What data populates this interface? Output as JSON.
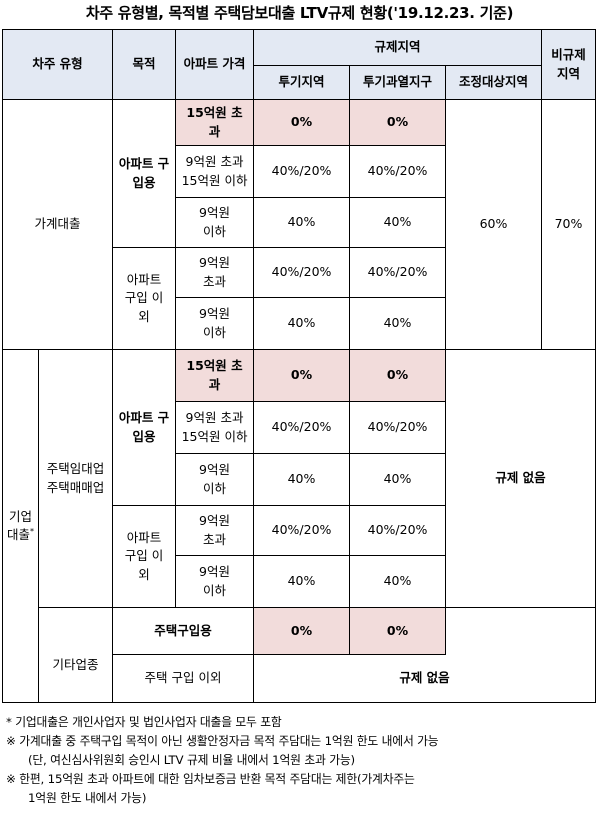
{
  "title": "차주 유형별, 목적별 주택담보대출 LTV규제 현황('19.12.23. 기준)",
  "header": {
    "borrower_type": "차주 유형",
    "purpose": "목적",
    "apt_price": "아파트 가격",
    "regulated": "규제지역",
    "speculative": "투기지역",
    "overheated": "투기과열지구",
    "adjustment": "조정대상지역",
    "non_regulated": "비규제 지역"
  },
  "household": {
    "label": "가계대출",
    "purchase_label": "아파트 구입용",
    "other_label": "아파트 구입 이외",
    "rows": [
      {
        "price": "15억원 초과",
        "spec": "0%",
        "over": "0%"
      },
      {
        "price": "9억원 초과 15억원 이하",
        "spec": "40%/20%",
        "over": "40%/20%"
      },
      {
        "price": "9억원 이하",
        "spec": "40%",
        "over": "40%"
      },
      {
        "price": "9억원 초과",
        "spec": "40%/20%",
        "over": "40%/20%"
      },
      {
        "price": "9억원 이하",
        "spec": "40%",
        "over": "40%"
      }
    ],
    "adjustment_value": "60%",
    "non_regulated_value": "70%"
  },
  "corporate": {
    "label": "기업 대출",
    "label_sup": "*",
    "rental_label": "주택임대업 주택매매업",
    "purchase_label": "아파트 구입용",
    "other_label": "아파트 구입 이외",
    "rows": [
      {
        "price": "15억원 초과",
        "spec": "0%",
        "over": "0%"
      },
      {
        "price": "9억원 초과 15억원 이하",
        "spec": "40%/20%",
        "over": "40%/20%"
      },
      {
        "price": "9억원 이하",
        "spec": "40%",
        "over": "40%"
      },
      {
        "price": "9억원 초과",
        "spec": "40%/20%",
        "over": "40%/20%"
      },
      {
        "price": "9억원 이하",
        "spec": "40%",
        "over": "40%"
      }
    ],
    "no_regulation": "규제 없음",
    "other_business": {
      "label": "기타업종",
      "purchase": "주택구입용",
      "spec": "0%",
      "over": "0%",
      "non_purchase": "주택 구입 이외",
      "no_regulation": "규제 없음"
    }
  },
  "notes": [
    "* 기업대출은 개인사업자 및 법인사업자 대출을 모두 포함",
    "※ 가계대출 중 주택구입 목적이 아닌 생활안정자금 목적 주담대는 1억원 한도 내에서 가능",
    "(단, 여신심사위원회 승인시 LTV 규제 비율 내에서 1억원 초과 가능)",
    "※ 한편, 15억원 초과 아파트에 대한 임차보증금 반환 목적 주담대는 제한(가계차주는",
    "1억원 한도 내에서 가능)"
  ],
  "colors": {
    "header_bg": "#e3e9f3",
    "highlight_bg": "#f2dcdb"
  }
}
